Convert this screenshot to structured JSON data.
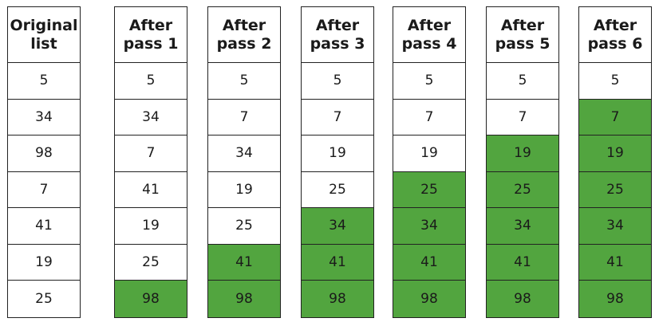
{
  "colors": {
    "sorted": "#52a53f",
    "unsorted": "#ffffff",
    "border": "#222222"
  },
  "columns": [
    {
      "header_line1": "Original",
      "header_line2": "list",
      "values": [
        "5",
        "34",
        "98",
        "7",
        "41",
        "19",
        "25"
      ],
      "sorted_count": 0
    },
    {
      "header_line1": "After",
      "header_line2": "pass 1",
      "values": [
        "5",
        "34",
        "7",
        "41",
        "19",
        "25",
        "98"
      ],
      "sorted_count": 1
    },
    {
      "header_line1": "After",
      "header_line2": "pass 2",
      "values": [
        "5",
        "7",
        "34",
        "19",
        "25",
        "41",
        "98"
      ],
      "sorted_count": 2
    },
    {
      "header_line1": "After",
      "header_line2": "pass 3",
      "values": [
        "5",
        "7",
        "19",
        "25",
        "34",
        "41",
        "98"
      ],
      "sorted_count": 3
    },
    {
      "header_line1": "After",
      "header_line2": "pass 4",
      "values": [
        "5",
        "7",
        "19",
        "25",
        "34",
        "41",
        "98"
      ],
      "sorted_count": 4
    },
    {
      "header_line1": "After",
      "header_line2": "pass 5",
      "values": [
        "5",
        "7",
        "19",
        "25",
        "34",
        "41",
        "98"
      ],
      "sorted_count": 5
    },
    {
      "header_line1": "After",
      "header_line2": "pass 6",
      "values": [
        "5",
        "7",
        "19",
        "25",
        "34",
        "41",
        "98"
      ],
      "sorted_count": 6
    }
  ]
}
